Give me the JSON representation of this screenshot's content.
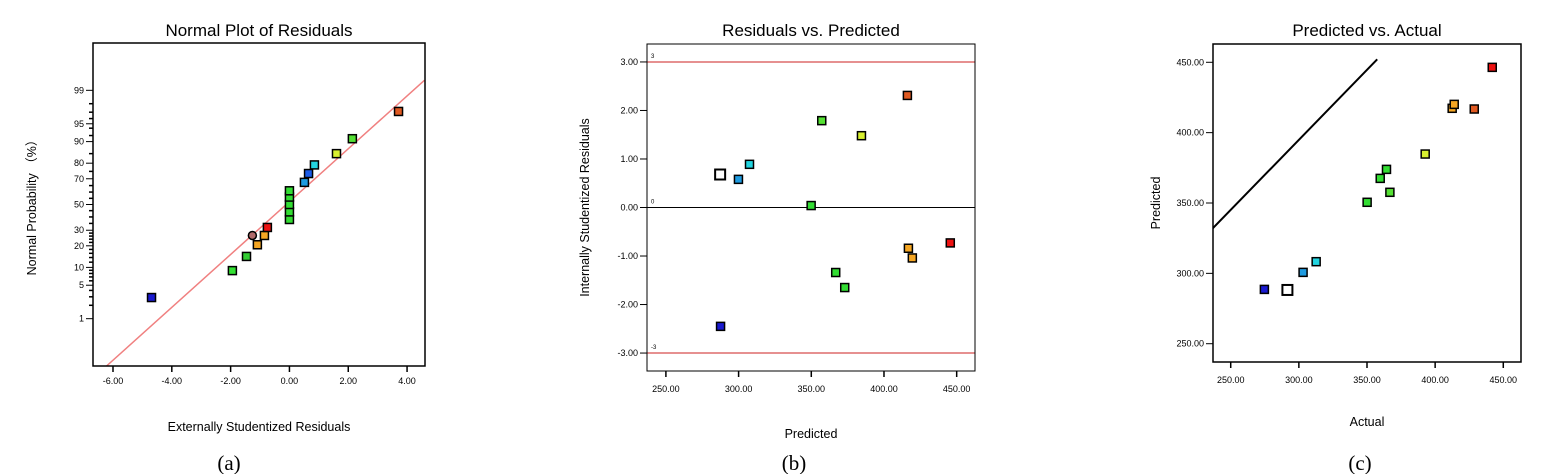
{
  "chart_data": [
    {
      "type": "scatter",
      "panel_label": "(a)",
      "title": "Normal Plot of Residuals",
      "xlabel": "Externally Studentized Residuals",
      "ylabel": "Normal Probability （%）",
      "xlim": [
        -6.68,
        4.61
      ],
      "ylim": [
        0.05,
        99.95
      ],
      "yscale": "normal-probability",
      "xticks": [
        -6,
        -4,
        -2,
        0,
        2,
        4
      ],
      "xtick_labels": [
        "-6.00",
        "-4.00",
        "-2.00",
        "0.00",
        "2.00",
        "4.00"
      ],
      "yticks": [
        1,
        5,
        10,
        20,
        30,
        50,
        70,
        80,
        90,
        95,
        99
      ],
      "ytick_labels": [
        "1",
        "5",
        "10",
        "20",
        "30",
        "50",
        "70",
        "80",
        "90",
        "95",
        "99"
      ],
      "reference_line": {
        "x": [
          -6.22,
          4.59
        ],
        "prob": [
          0.05,
          99.43
        ],
        "color": "#f08080"
      },
      "points": [
        {
          "x": -4.69,
          "y": 2.9,
          "color": "#1a1ad0"
        },
        {
          "x": -1.94,
          "y": 8.9,
          "color": "#33e033"
        },
        {
          "x": -1.46,
          "y": 14.5,
          "color": "#33cc33"
        },
        {
          "x": -1.09,
          "y": 20.6,
          "color": "#f5a623"
        },
        {
          "x": -1.26,
          "y": 26.4,
          "color": "#b06a6a",
          "shape": "circle"
        },
        {
          "x": -0.85,
          "y": 26.4,
          "color": "#f5a623"
        },
        {
          "x": -0.75,
          "y": 32.0,
          "color": "#ee1111"
        },
        {
          "x": 0.0,
          "y": 38.0,
          "color": "#33dd33"
        },
        {
          "x": 0.0,
          "y": 44.0,
          "color": "#33dd33"
        },
        {
          "x": 0.0,
          "y": 50.0,
          "color": "#33dd33"
        },
        {
          "x": 0.0,
          "y": 56.0,
          "color": "#33dd33"
        },
        {
          "x": 0.0,
          "y": 61.0,
          "color": "#33dd33"
        },
        {
          "x": 0.51,
          "y": 67.4,
          "color": "#1f9be0"
        },
        {
          "x": 0.65,
          "y": 73.6,
          "color": "#1a5be8"
        },
        {
          "x": 0.85,
          "y": 79.0,
          "color": "#22d4e0"
        },
        {
          "x": 1.6,
          "y": 85.0,
          "color": "#d8f030"
        },
        {
          "x": 2.14,
          "y": 91.0,
          "color": "#55e033"
        },
        {
          "x": 3.71,
          "y": 97.1,
          "color": "#e05a22"
        }
      ]
    },
    {
      "type": "scatter",
      "panel_label": "(b)",
      "title": "Residuals vs. Predicted",
      "xlabel": "Predicted",
      "ylabel": "Internally Studentized Residuals",
      "xlim": [
        237,
        462.6
      ],
      "ylim": [
        -3.37,
        3.37
      ],
      "xticks": [
        250,
        300,
        350,
        400,
        450
      ],
      "xtick_labels": [
        "250.00",
        "300.00",
        "350.00",
        "400.00",
        "450.00"
      ],
      "yticks": [
        -3,
        -2,
        -1,
        0,
        1,
        2,
        3
      ],
      "ytick_labels": [
        "-3.00",
        "-2.00",
        "-1.00",
        "0.00",
        "1.00",
        "2.00",
        "3.00"
      ],
      "hlines": [
        {
          "y": 3,
          "label": "3",
          "color": "#cc2222"
        },
        {
          "y": 0,
          "label": "0",
          "color": "#000000"
        },
        {
          "y": -3,
          "label": "-3",
          "color": "#cc2222"
        }
      ],
      "points": [
        {
          "x": 287.3,
          "y": 0.68,
          "color": "#ffffff",
          "big": true
        },
        {
          "x": 299.9,
          "y": 0.58,
          "color": "#1f9be0"
        },
        {
          "x": 307.5,
          "y": 0.89,
          "color": "#22d4e0"
        },
        {
          "x": 349.9,
          "y": 0.04,
          "color": "#33dd33"
        },
        {
          "x": 357.2,
          "y": 1.79,
          "color": "#55e033"
        },
        {
          "x": 384.5,
          "y": 1.48,
          "color": "#d8f030"
        },
        {
          "x": 416.1,
          "y": 2.31,
          "color": "#e05a22"
        },
        {
          "x": 416.8,
          "y": -0.84,
          "color": "#f5a623"
        },
        {
          "x": 419.5,
          "y": -1.04,
          "color": "#f5a623"
        },
        {
          "x": 445.6,
          "y": -0.73,
          "color": "#ee1111"
        },
        {
          "x": 366.8,
          "y": -1.34,
          "color": "#33dd33"
        },
        {
          "x": 373.0,
          "y": -1.65,
          "color": "#33dd33"
        },
        {
          "x": 287.6,
          "y": -2.45,
          "color": "#1a1ad0"
        }
      ]
    },
    {
      "type": "scatter",
      "panel_label": "(c)",
      "title": "Predicted vs. Actual",
      "xlabel": "Actual",
      "ylabel": "Predicted",
      "xlim": [
        237,
        463
      ],
      "ylim": [
        237,
        463
      ],
      "xticks": [
        250,
        300,
        350,
        400,
        450
      ],
      "xtick_labels": [
        "250.00",
        "300.00",
        "350.00",
        "400.00",
        "450.00"
      ],
      "yticks": [
        250,
        300,
        350,
        400,
        450
      ],
      "ytick_labels": [
        "250.00",
        "300.00",
        "350.00",
        "400.00",
        "450.00"
      ],
      "reference_line": {
        "x": [
          230.4,
          357.5
        ],
        "y": [
          325.6,
          452.1
        ],
        "color": "#000000"
      },
      "points": [
        {
          "x": 274.7,
          "y": 288.6,
          "color": "#1a1ad0"
        },
        {
          "x": 291.6,
          "y": 288.2,
          "color": "#ffffff",
          "big": true
        },
        {
          "x": 303.1,
          "y": 300.7,
          "color": "#1f9be0"
        },
        {
          "x": 312.7,
          "y": 308.3,
          "color": "#22d4e0"
        },
        {
          "x": 350.1,
          "y": 350.5,
          "color": "#33dd33"
        },
        {
          "x": 359.7,
          "y": 367.5,
          "color": "#33dd33"
        },
        {
          "x": 364.3,
          "y": 373.9,
          "color": "#33dd33"
        },
        {
          "x": 366.8,
          "y": 357.6,
          "color": "#55e033"
        },
        {
          "x": 392.7,
          "y": 384.8,
          "color": "#d8f030"
        },
        {
          "x": 412.5,
          "y": 417.3,
          "color": "#f5a623"
        },
        {
          "x": 414.0,
          "y": 420.1,
          "color": "#f5a623"
        },
        {
          "x": 428.7,
          "y": 416.8,
          "color": "#e05a22"
        },
        {
          "x": 441.9,
          "y": 446.4,
          "color": "#ee1111"
        }
      ]
    }
  ]
}
